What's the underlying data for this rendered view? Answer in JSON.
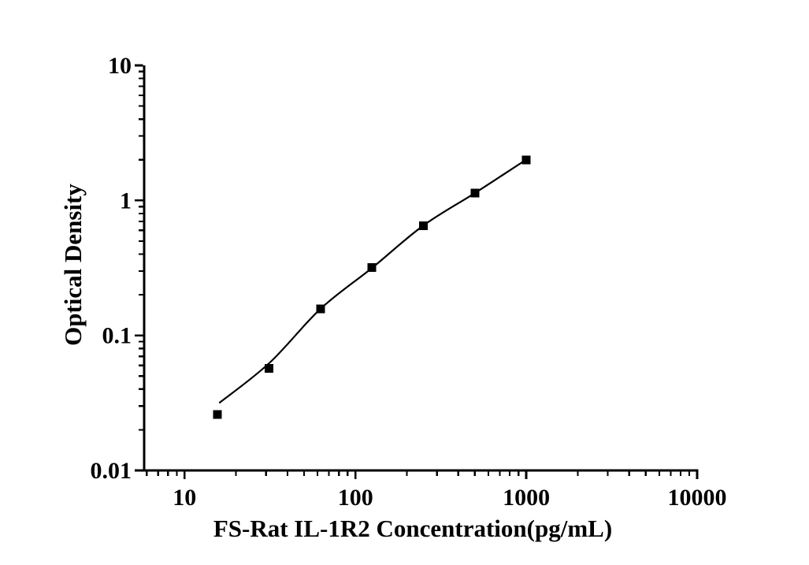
{
  "figure": {
    "background": "#ffffff",
    "ink_color": "#000000"
  },
  "chart_data": {
    "type": "scatter",
    "title": "",
    "xlabel": "FS-Rat IL-1R2 Concentration(pg/mL)",
    "ylabel": "Optical Density",
    "x_scale": "log",
    "y_scale": "log",
    "xlim": [
      5.8,
      10000
    ],
    "ylim": [
      0.01,
      10
    ],
    "grid": false,
    "legend_position": "none",
    "x_ticks": {
      "values": [
        10,
        100,
        1000,
        10000
      ],
      "labels": [
        "10",
        "100",
        "1000",
        "10000"
      ]
    },
    "y_ticks": {
      "values": [
        10,
        1,
        0.1,
        0.01
      ],
      "labels": [
        "10",
        "1",
        "0.1",
        "0.01"
      ]
    },
    "series": [
      {
        "name": "standard-points",
        "kind": "scatter",
        "marker": "square",
        "color": "#000000",
        "x": [
          15.6,
          31.2,
          62.5,
          125,
          250,
          500,
          1000
        ],
        "y": [
          0.026,
          0.057,
          0.157,
          0.318,
          0.65,
          1.13,
          2.0
        ]
      },
      {
        "name": "fit-curve",
        "kind": "line",
        "color": "#000000",
        "x": [
          15.95,
          31.4,
          62.7,
          125,
          250,
          497,
          1000
        ],
        "y": [
          0.0316,
          0.0626,
          0.158,
          0.316,
          0.652,
          1.128,
          2.006
        ]
      }
    ]
  }
}
